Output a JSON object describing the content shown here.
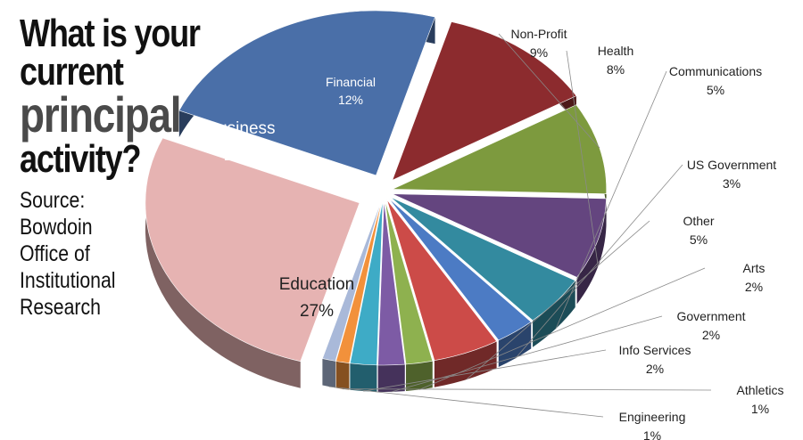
{
  "header": {
    "title_line1": "What is your current",
    "title_line2": "principal",
    "title_line3": "activity?"
  },
  "source": {
    "lines": [
      "Source:",
      "Bowdoin",
      "Office of",
      "Institutional",
      "Research"
    ]
  },
  "chart_data": {
    "type": "pie",
    "title": "What is your current principal activity?",
    "slices": [
      {
        "label": "Education",
        "value": 27,
        "pct": "27%",
        "color": "#e6b3b2"
      },
      {
        "label": "Business",
        "value": 23,
        "pct": "23%",
        "color": "#4a6fa8"
      },
      {
        "label": "Financial",
        "value": 12,
        "pct": "12%",
        "color": "#8c2b2e"
      },
      {
        "label": "Non-Profit",
        "value": 9,
        "pct": "9%",
        "color": "#7d9a3e"
      },
      {
        "label": "Health",
        "value": 8,
        "pct": "8%",
        "color": "#64457f"
      },
      {
        "label": "Communications",
        "value": 5,
        "pct": "5%",
        "color": "#338a9f"
      },
      {
        "label": "US Government",
        "value": 3,
        "pct": "3%",
        "color": "#4c7bc4"
      },
      {
        "label": "Other",
        "value": 5,
        "pct": "5%",
        "color": "#cc4b48"
      },
      {
        "label": "Arts",
        "value": 2,
        "pct": "2%",
        "color": "#8eb14f"
      },
      {
        "label": "Government",
        "value": 2,
        "pct": "2%",
        "color": "#7d5ba5"
      },
      {
        "label": "Info Services",
        "value": 2,
        "pct": "2%",
        "color": "#3eabc6"
      },
      {
        "label": "Athletics",
        "value": 1,
        "pct": "1%",
        "color": "#f2913b"
      },
      {
        "label": "Engineering",
        "value": 1,
        "pct": "1%",
        "color": "#a9b9d9"
      }
    ]
  }
}
